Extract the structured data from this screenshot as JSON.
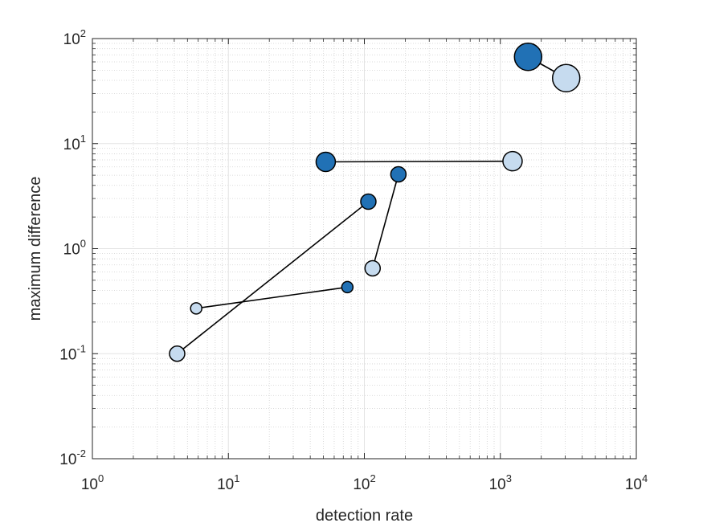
{
  "chart_data": {
    "type": "scatter",
    "xlabel": "detection rate",
    "ylabel": "maximum difference",
    "xscale": "log",
    "yscale": "log",
    "xlim": [
      1,
      10000
    ],
    "ylim": [
      0.01,
      100
    ],
    "grid": true,
    "minor_grid": true,
    "x_ticks": [
      {
        "base": "10",
        "exp": "0",
        "value": 1
      },
      {
        "base": "10",
        "exp": "1",
        "value": 10
      },
      {
        "base": "10",
        "exp": "2",
        "value": 100
      },
      {
        "base": "10",
        "exp": "3",
        "value": 1000
      },
      {
        "base": "10",
        "exp": "4",
        "value": 10000
      }
    ],
    "y_ticks": [
      {
        "base": "10",
        "exp": "-2",
        "value": 0.01
      },
      {
        "base": "10",
        "exp": "-1",
        "value": 0.1
      },
      {
        "base": "10",
        "exp": "0",
        "value": 1
      },
      {
        "base": "10",
        "exp": "1",
        "value": 10
      },
      {
        "base": "10",
        "exp": "2",
        "value": 100
      }
    ],
    "colors": {
      "dark_marker": "#2171b5",
      "light_marker": "#c6dbef",
      "marker_edge": "#000000",
      "line": "#000000"
    },
    "pairs": [
      {
        "size": "small",
        "dark": {
          "x": 75,
          "y": 0.43
        },
        "light": {
          "x": 5.8,
          "y": 0.27
        }
      },
      {
        "size": "medium",
        "dark": {
          "x": 107,
          "y": 2.8
        },
        "light": {
          "x": 4.2,
          "y": 0.1
        }
      },
      {
        "size": "medium",
        "dark": {
          "x": 178,
          "y": 5.1
        },
        "light": {
          "x": 115,
          "y": 0.65
        }
      },
      {
        "size": "large",
        "dark": {
          "x": 52,
          "y": 6.7
        },
        "light": {
          "x": 1230,
          "y": 6.8
        }
      },
      {
        "size": "xlarge",
        "dark": {
          "x": 1600,
          "y": 67
        },
        "light": {
          "x": 3050,
          "y": 42
        }
      }
    ]
  }
}
